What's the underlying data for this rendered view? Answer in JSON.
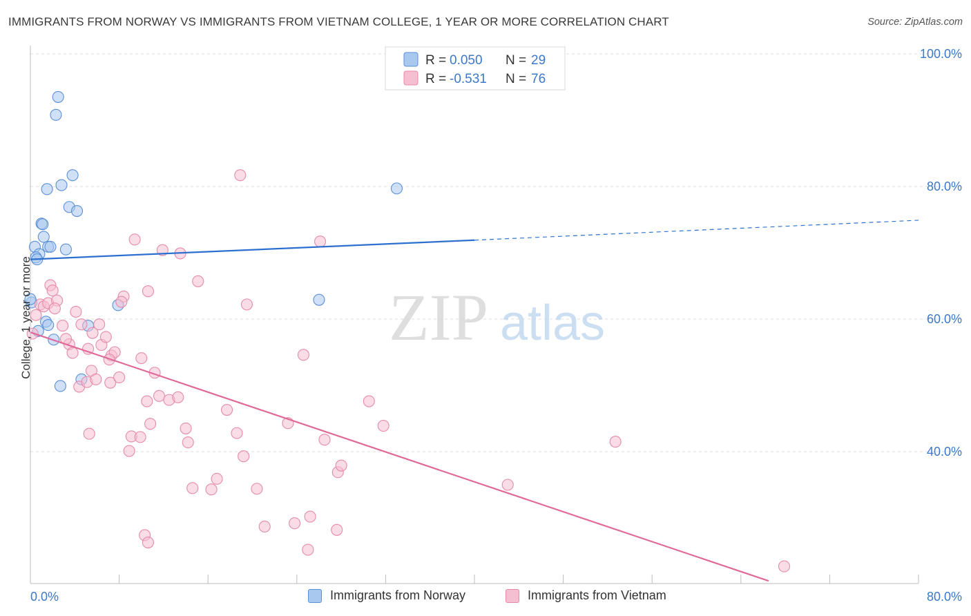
{
  "header": {
    "title": "IMMIGRANTS FROM NORWAY VS IMMIGRANTS FROM VIETNAM COLLEGE, 1 YEAR OR MORE CORRELATION CHART",
    "source": "Source: ZipAtlas.com"
  },
  "watermark": {
    "zip": "ZIP",
    "atlas": "atlas"
  },
  "colors": {
    "norway_fill": "#a9c8f0",
    "norway_stroke": "#5a8fd6",
    "norway_line": "#2b6fcf",
    "vietnam_fill": "#f6bfd1",
    "vietnam_stroke": "#e58aa8",
    "vietnam_line": "#e06a97",
    "axis_label": "#3b78c9",
    "grid": "#dddddd"
  },
  "legend_top": {
    "rows": [
      {
        "r_label": "R =",
        "r_value": "0.050",
        "n_label": "N =",
        "n_value": "29"
      },
      {
        "r_label": "R =",
        "r_value": "-0.531",
        "n_label": "N =",
        "n_value": "76"
      }
    ]
  },
  "legend_bottom": {
    "items": [
      {
        "label": "Immigrants from Norway"
      },
      {
        "label": "Immigrants from Vietnam"
      }
    ]
  },
  "chart_data": {
    "type": "scatter",
    "ylabel": "College, 1 year or more",
    "xlabel": "",
    "xlim": [
      0,
      80
    ],
    "ylim": [
      20,
      104
    ],
    "x_tick_labels": [
      "0.0%",
      "80.0%"
    ],
    "y_tick_labels": [
      "40.0%",
      "60.0%",
      "80.0%",
      "100.0%"
    ],
    "y_ticks": [
      40,
      60,
      80,
      100
    ],
    "grid": true,
    "legend_position": "top-center",
    "series": [
      {
        "name": "Immigrants from Norway",
        "stats": {
          "R": 0.05,
          "N": 29
        },
        "points": [
          [
            2.5,
            93.5
          ],
          [
            2.3,
            90.8
          ],
          [
            3.8,
            81.7
          ],
          [
            2.8,
            80.2
          ],
          [
            1.5,
            79.6
          ],
          [
            33.0,
            79.7
          ],
          [
            3.5,
            76.9
          ],
          [
            4.2,
            76.3
          ],
          [
            1.0,
            74.4
          ],
          [
            1.1,
            74.3
          ],
          [
            1.2,
            72.4
          ],
          [
            1.6,
            70.9
          ],
          [
            1.8,
            70.9
          ],
          [
            0.4,
            70.9
          ],
          [
            3.2,
            70.5
          ],
          [
            0.8,
            69.8
          ],
          [
            0.5,
            69.3
          ],
          [
            0.6,
            69.0
          ],
          [
            0.1,
            62.5
          ],
          [
            7.9,
            62.1
          ],
          [
            26.0,
            62.9
          ],
          [
            1.4,
            59.6
          ],
          [
            1.6,
            59.1
          ],
          [
            5.2,
            59.0
          ],
          [
            0.7,
            58.2
          ],
          [
            2.1,
            56.9
          ],
          [
            4.6,
            50.9
          ],
          [
            2.7,
            49.9
          ],
          [
            0.0,
            63.0
          ]
        ],
        "trend": {
          "x": [
            0,
            40
          ],
          "y": [
            69.0,
            71.9
          ],
          "dashed_x": [
            40,
            80
          ],
          "dashed_y": [
            71.9,
            74.9
          ]
        }
      },
      {
        "name": "Immigrants from Vietnam",
        "stats": {
          "R": -0.531,
          "N": 76
        },
        "points": [
          [
            0.2,
            57.8
          ],
          [
            0.5,
            60.6
          ],
          [
            0.9,
            62.2
          ],
          [
            1.2,
            61.9
          ],
          [
            1.6,
            62.4
          ],
          [
            1.8,
            65.1
          ],
          [
            2.0,
            64.3
          ],
          [
            2.4,
            62.8
          ],
          [
            2.9,
            59.0
          ],
          [
            3.5,
            56.2
          ],
          [
            4.1,
            61.1
          ],
          [
            4.6,
            59.2
          ],
          [
            5.2,
            55.5
          ],
          [
            5.5,
            52.2
          ],
          [
            3.8,
            54.9
          ],
          [
            4.4,
            49.8
          ],
          [
            5.1,
            50.5
          ],
          [
            5.6,
            57.9
          ],
          [
            6.2,
            59.2
          ],
          [
            6.4,
            56.1
          ],
          [
            6.8,
            57.3
          ],
          [
            7.3,
            54.5
          ],
          [
            7.6,
            55.0
          ],
          [
            7.1,
            53.9
          ],
          [
            5.9,
            50.9
          ],
          [
            7.2,
            50.4
          ],
          [
            8.0,
            51.2
          ],
          [
            8.4,
            63.4
          ],
          [
            8.2,
            62.6
          ],
          [
            9.4,
            72.0
          ],
          [
            10.0,
            54.1
          ],
          [
            10.5,
            47.6
          ],
          [
            10.6,
            64.2
          ],
          [
            11.2,
            51.9
          ],
          [
            11.6,
            48.4
          ],
          [
            12.5,
            47.8
          ],
          [
            13.3,
            48.2
          ],
          [
            11.9,
            70.4
          ],
          [
            13.5,
            69.9
          ],
          [
            14.0,
            43.5
          ],
          [
            14.2,
            41.4
          ],
          [
            15.1,
            65.7
          ],
          [
            9.1,
            42.3
          ],
          [
            9.9,
            42.2
          ],
          [
            10.8,
            44.2
          ],
          [
            8.9,
            40.1
          ],
          [
            5.3,
            42.7
          ],
          [
            14.6,
            34.5
          ],
          [
            16.3,
            34.3
          ],
          [
            16.8,
            35.9
          ],
          [
            17.7,
            46.3
          ],
          [
            18.6,
            42.8
          ],
          [
            18.9,
            81.7
          ],
          [
            19.2,
            39.3
          ],
          [
            19.5,
            62.2
          ],
          [
            20.4,
            34.4
          ],
          [
            21.1,
            28.7
          ],
          [
            23.2,
            44.3
          ],
          [
            23.8,
            29.2
          ],
          [
            24.6,
            54.6
          ],
          [
            25.2,
            30.2
          ],
          [
            26.1,
            71.7
          ],
          [
            26.5,
            41.8
          ],
          [
            27.7,
            36.9
          ],
          [
            28.0,
            37.9
          ],
          [
            27.6,
            28.2
          ],
          [
            30.5,
            47.6
          ],
          [
            31.8,
            43.9
          ],
          [
            43.0,
            35.0
          ],
          [
            25.0,
            25.2
          ],
          [
            10.3,
            27.4
          ],
          [
            10.6,
            26.3
          ],
          [
            52.7,
            41.5
          ],
          [
            67.9,
            22.7
          ],
          [
            3.2,
            57.0
          ],
          [
            2.2,
            61.6
          ]
        ],
        "trend": {
          "x": [
            0,
            66.5
          ],
          "y": [
            58.0,
            20.5
          ]
        }
      }
    ]
  }
}
